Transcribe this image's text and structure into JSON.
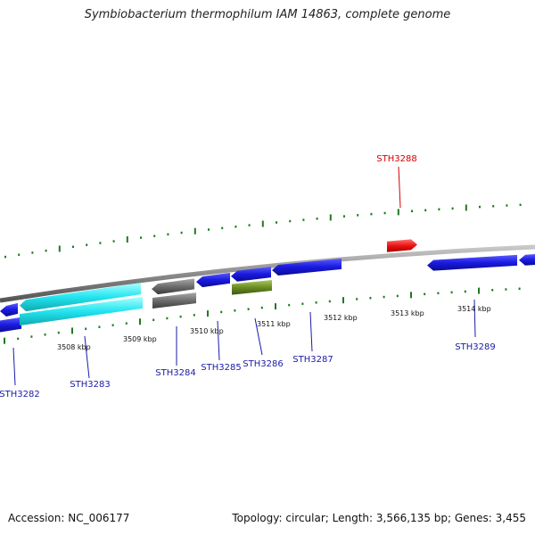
{
  "title": "Symbiobacterium thermophilum IAM 14863, complete genome",
  "footer": {
    "accession": "Accession: NC_006177",
    "summary": "Topology: circular; Length: 3,566,135 bp; Genes: 3,455"
  },
  "colors": {
    "backbone": "#8c8c8c",
    "ticks": "#1f7a1f",
    "gene_blue": "#1a1ae0",
    "gene_cyan": "#22e5f0",
    "gene_gray": "#6e6e6e",
    "gene_olive": "#6b8e23",
    "gene_red": "#ee1111",
    "label_blue": "#1a1aa8",
    "label_red": "#d40000"
  },
  "ticks": {
    "inner": [
      {
        "label": "3508 kbp"
      },
      {
        "label": "3509 kbp"
      },
      {
        "label": "3510 kbp"
      },
      {
        "label": "3511 kbp"
      },
      {
        "label": "3512 kbp"
      },
      {
        "label": "3513 kbp"
      },
      {
        "label": "3514 kbp"
      }
    ]
  },
  "genes": [
    {
      "name": "STH3282",
      "color": "gene_blue"
    },
    {
      "name": "STH3283",
      "color": "gene_cyan"
    },
    {
      "name": "STH3284",
      "color": "gene_gray"
    },
    {
      "name": "STH3285",
      "color": "gene_blue"
    },
    {
      "name": "STH3286",
      "color": "gene_olive"
    },
    {
      "name": "STH3287",
      "color": "gene_blue"
    },
    {
      "name": "STH3288",
      "color": "gene_red"
    },
    {
      "name": "STH3289",
      "color": "gene_blue"
    }
  ]
}
